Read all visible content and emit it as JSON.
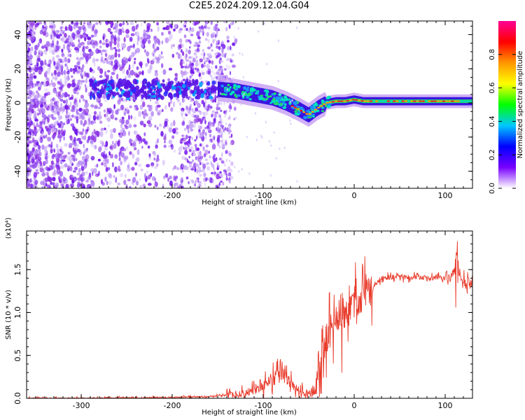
{
  "figure": {
    "title": "C2E5.2024.209.12.04.G04"
  },
  "chart_data": [
    {
      "type": "heatmap",
      "title": "C2E5.2024.209.12.04.G04",
      "xlabel": "Height of straight line (km)",
      "ylabel": "Frequency (Hz)",
      "xlim": [
        -360,
        130
      ],
      "ylim": [
        -50,
        48
      ],
      "xticks": [
        -300,
        -200,
        -100,
        0,
        100
      ],
      "yticks": [
        -40,
        -20,
        0,
        20,
        40
      ],
      "ridge": {
        "x": [
          -150,
          -130,
          -110,
          -90,
          -75,
          -60,
          -50,
          -40,
          -30,
          -20,
          -10,
          0,
          10,
          30,
          60,
          90,
          110,
          130
        ],
        "y": [
          8,
          7,
          5,
          3,
          0,
          -4,
          -7,
          -3,
          0,
          1,
          1,
          2,
          1,
          1,
          1,
          1,
          1,
          1
        ]
      },
      "colorbar": {
        "label": "Normalized spectral amplitude",
        "range": [
          0,
          1
        ],
        "ticks": [
          "0.0",
          "0.2",
          "0.4",
          "0.6",
          "0.8"
        ],
        "colors": [
          "#ffffff",
          "#7800ff",
          "#0000ff",
          "#00c8ff",
          "#00ff00",
          "#ffff00",
          "#ff9600",
          "#ff0000",
          "#ff0096"
        ]
      },
      "grid": false
    },
    {
      "type": "line",
      "xlabel": "Height of straight line (km)",
      "ylabel": "SNR (10 * v/v)",
      "y_multiplier": "(x10⁴)",
      "xlim": [
        -360,
        130
      ],
      "ylim": [
        0,
        1.95
      ],
      "xticks": [
        -300,
        -200,
        -100,
        0,
        100
      ],
      "yticks": [
        "0.0",
        "0.5",
        "1.0",
        "1.5"
      ],
      "color": "#e83a2a",
      "grid": false,
      "series": [
        {
          "x": [
            -360,
            -300,
            -200,
            -160,
            -120,
            -110,
            -100,
            -90,
            -80,
            -70,
            -60,
            -45,
            -40,
            -35,
            -30,
            -25,
            -20,
            -15,
            -10,
            -5,
            0,
            5,
            10,
            20,
            30,
            50,
            70,
            90,
            100,
            105,
            110,
            113,
            117,
            120,
            130
          ],
          "y": [
            0.0,
            0.0,
            0.01,
            0.02,
            0.05,
            0.1,
            0.15,
            0.22,
            0.28,
            0.18,
            0.08,
            0.05,
            0.3,
            0.55,
            0.7,
            0.82,
            0.9,
            1.05,
            0.98,
            1.05,
            1.1,
            1.15,
            1.22,
            1.3,
            1.4,
            1.42,
            1.41,
            1.4,
            1.42,
            1.38,
            1.45,
            1.7,
            1.35,
            1.35,
            1.35
          ]
        }
      ]
    }
  ]
}
